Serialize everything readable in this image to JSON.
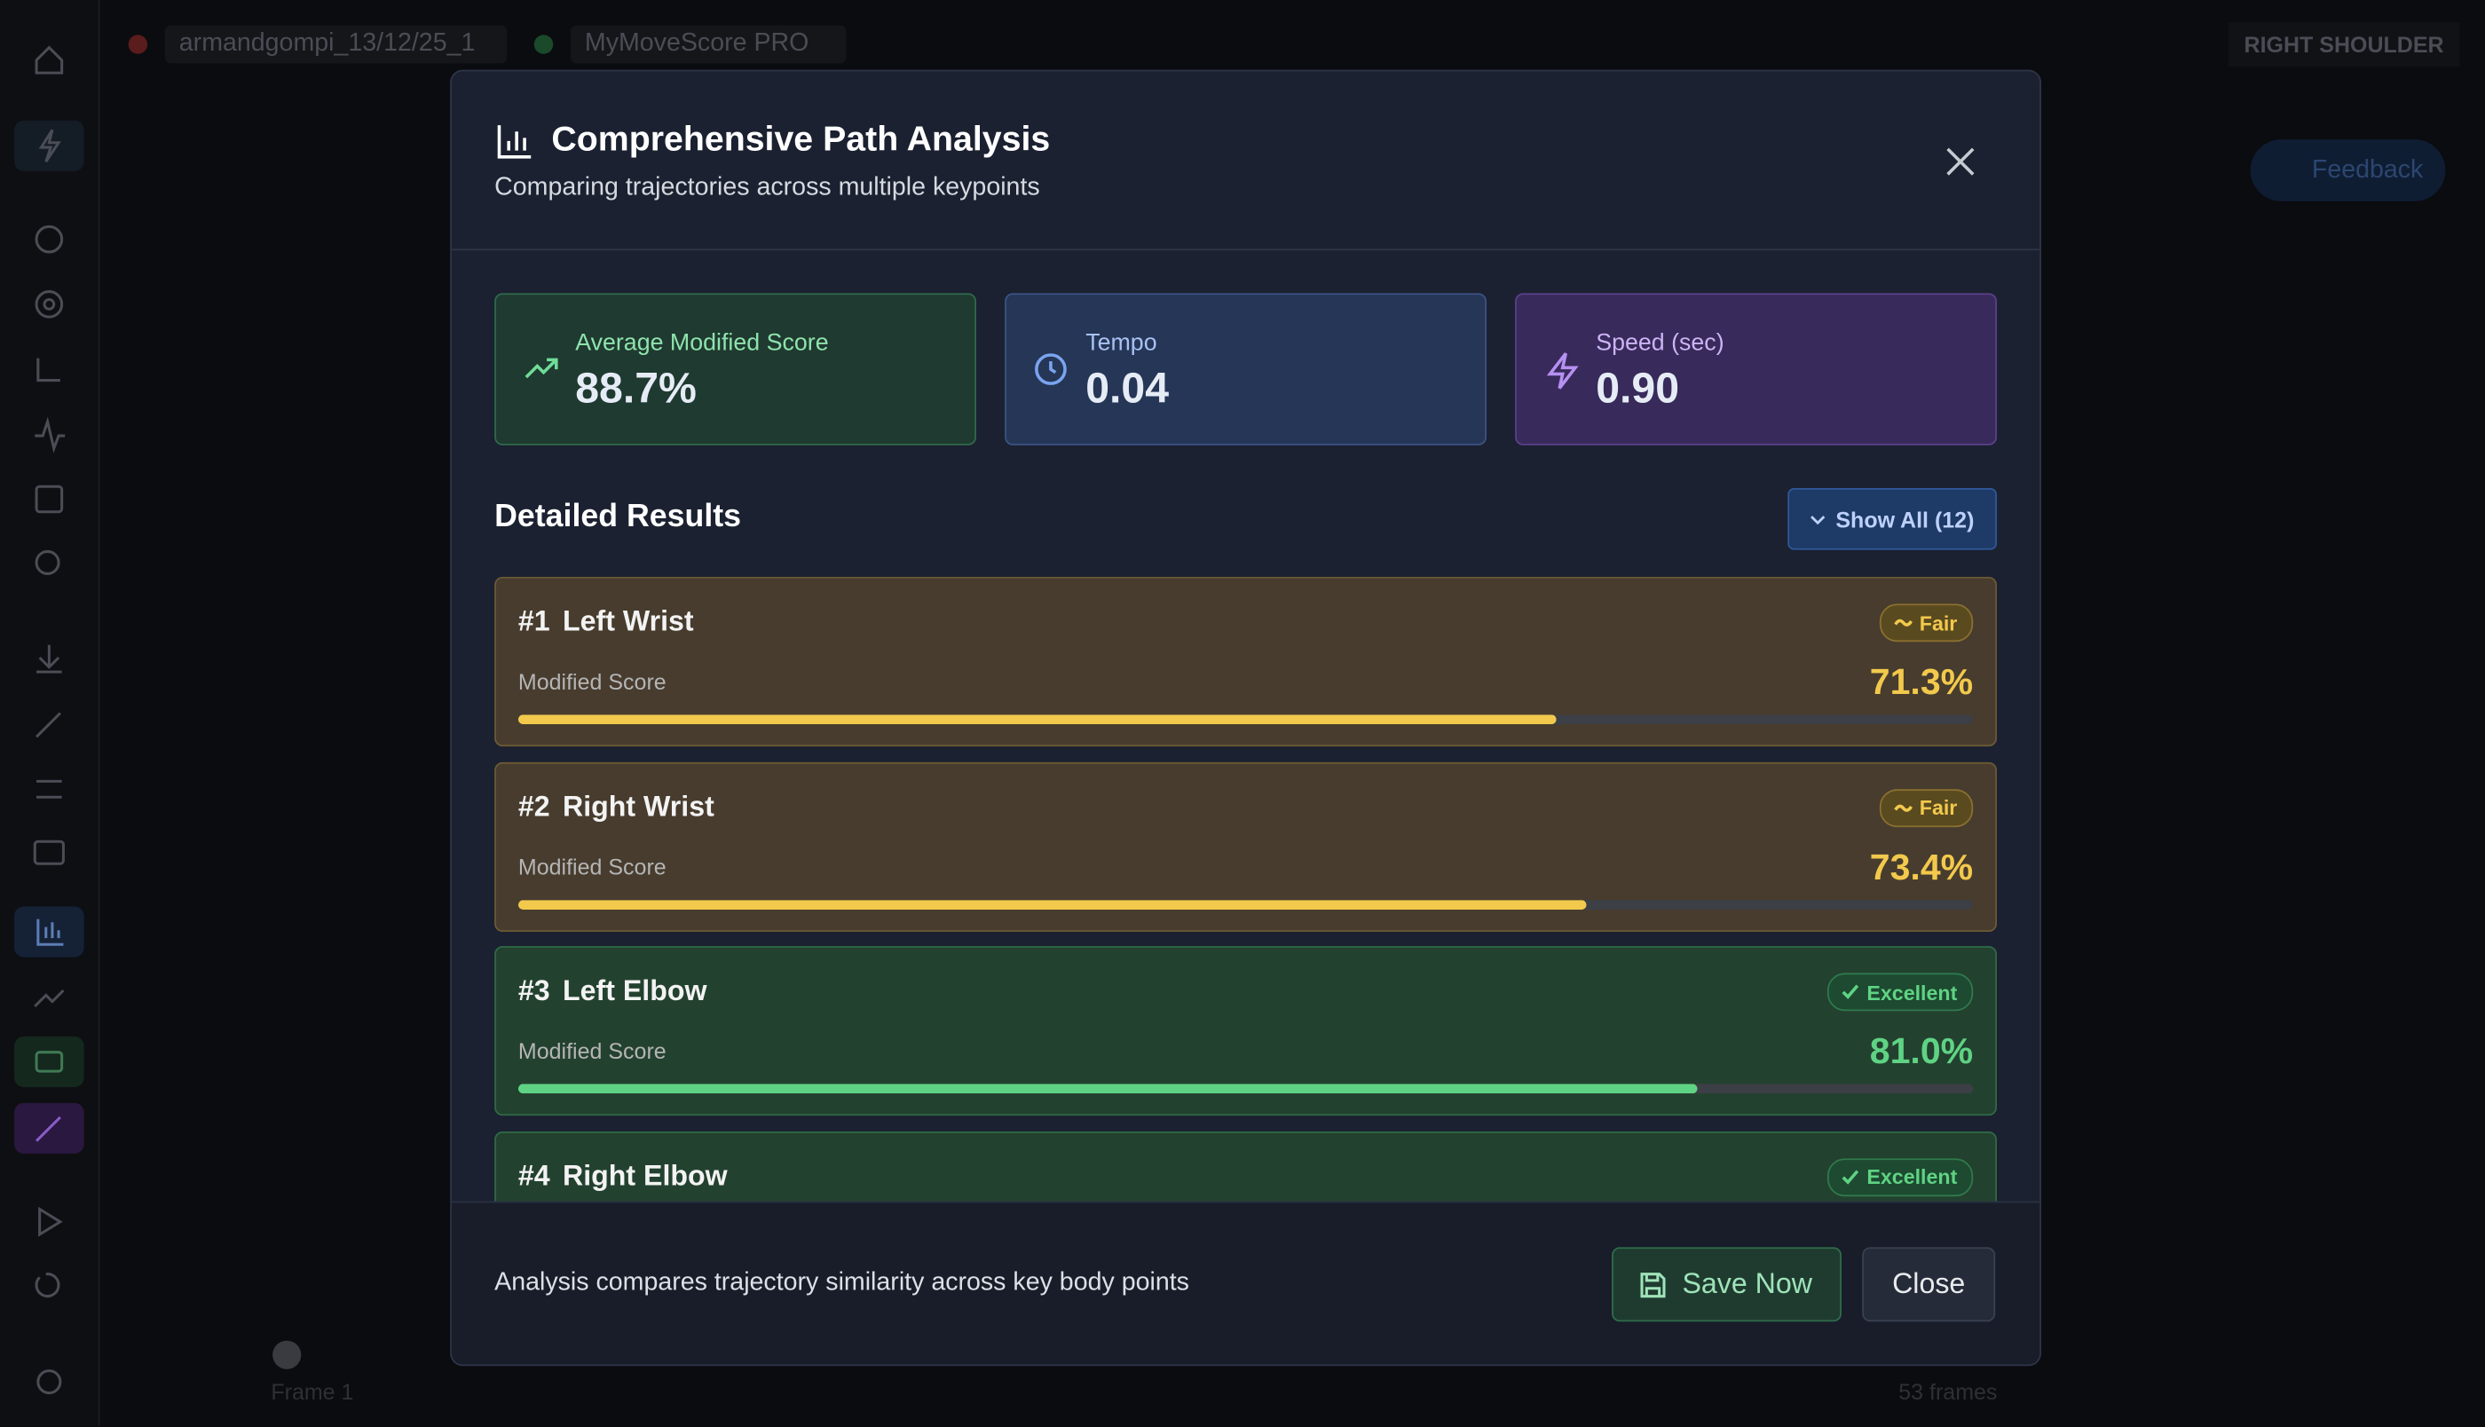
{
  "topbar": {
    "session": "armandgompi_13/12/25_1",
    "product": "MyMoveScore PRO",
    "keypoint": "RIGHT SHOULDER",
    "feedback": "Feedback"
  },
  "timeline": {
    "start": "Frame 1",
    "total": "53 frames"
  },
  "modal": {
    "title": "Comprehensive Path Analysis",
    "subtitle": "Comparing trajectories across multiple keypoints",
    "stats": [
      {
        "label": "Average Modified Score",
        "value": "88.7%"
      },
      {
        "label": "Tempo",
        "value": "0.04"
      },
      {
        "label": "Speed (sec)",
        "value": "0.90"
      }
    ],
    "section_title": "Detailed Results",
    "show_all": "Show All (12)",
    "results": [
      {
        "rank": "#1",
        "name": "Left Wrist",
        "badge": "Fair",
        "label": "Modified Score",
        "score": 71.3,
        "score_label": "71.3%"
      },
      {
        "rank": "#2",
        "name": "Right Wrist",
        "badge": "Fair",
        "label": "Modified Score",
        "score": 73.4,
        "score_label": "73.4%"
      },
      {
        "rank": "#3",
        "name": "Left Elbow",
        "badge": "Excellent",
        "label": "Modified Score",
        "score": 81.0,
        "score_label": "81.0%"
      },
      {
        "rank": "#4",
        "name": "Right Elbow",
        "badge": "Excellent"
      }
    ],
    "footer_note": "Analysis compares trajectory similarity across key body points",
    "save": "Save Now",
    "close": "Close"
  }
}
